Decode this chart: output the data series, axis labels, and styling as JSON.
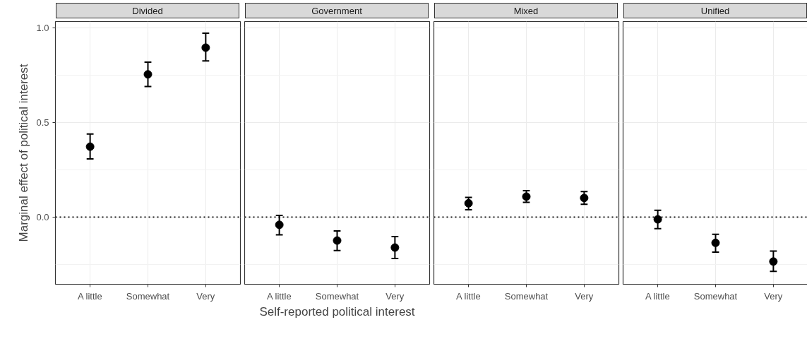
{
  "chart_data": [
    {
      "type": "scatter",
      "title": "Divided",
      "ylabel": "Marginal effect of political interest",
      "categories": [
        "A little",
        "Somewhat",
        "Very"
      ],
      "series": [
        {
          "color": "#000000",
          "values": [
            0.372,
            0.754,
            0.895
          ],
          "errors": [
            [
              0.307,
              0.439
            ],
            [
              0.69,
              0.818
            ],
            [
              0.825,
              0.971
            ]
          ]
        }
      ],
      "ylim": [
        -0.355,
        1.033
      ],
      "yticks": [
        {
          "value": 0.0,
          "label": "0.0"
        },
        {
          "value": 0.5,
          "label": "0.5"
        },
        {
          "value": 1.0,
          "label": "1.0"
        }
      ],
      "ref_lines": [
        {
          "axis": "y",
          "value": 0,
          "line_style": "dotted",
          "color": "#000000"
        }
      ],
      "grid": true,
      "marker": "circle"
    },
    {
      "type": "scatter",
      "title": "Government",
      "xlabel": "Self-reported political interest",
      "categories": [
        "A little",
        "Somewhat",
        "Very"
      ],
      "series": [
        {
          "color": "#000000",
          "values": [
            -0.041,
            -0.124,
            -0.161
          ],
          "errors": [
            [
              -0.094,
              0.009
            ],
            [
              -0.177,
              -0.073
            ],
            [
              -0.219,
              -0.103
            ]
          ]
        }
      ],
      "ylim": [
        -0.355,
        1.033
      ],
      "yticks": [
        0,
        0.5,
        1
      ],
      "tick_labels": "x",
      "ref_lines": [
        {
          "axis": "y",
          "value": 0,
          "line_style": "dotted",
          "color": "#000000"
        }
      ],
      "grid": true,
      "marker": "circle"
    },
    {
      "type": "scatter",
      "title": "Mixed",
      "categories": [
        "A little",
        "Somewhat",
        "Very"
      ],
      "series": [
        {
          "color": "#000000",
          "values": [
            0.073,
            0.108,
            0.101
          ],
          "errors": [
            [
              0.039,
              0.104
            ],
            [
              0.078,
              0.139
            ],
            [
              0.068,
              0.135
            ]
          ]
        }
      ],
      "ylim": [
        -0.355,
        1.033
      ],
      "yticks": [
        0,
        0.5,
        1
      ],
      "tick_labels": "x",
      "ref_lines": [
        {
          "axis": "y",
          "value": 0,
          "line_style": "dotted",
          "color": "#000000"
        }
      ],
      "grid": true,
      "marker": "circle"
    },
    {
      "type": "scatter",
      "title": "Unified",
      "categories": [
        "A little",
        "Somewhat",
        "Very"
      ],
      "series": [
        {
          "color": "#000000",
          "values": [
            -0.012,
            -0.136,
            -0.235
          ],
          "errors": [
            [
              -0.061,
              0.036
            ],
            [
              -0.185,
              -0.091
            ],
            [
              -0.287,
              -0.18
            ]
          ]
        }
      ],
      "ylim": [
        -0.355,
        1.033
      ],
      "yticks": [
        0,
        0.5,
        1
      ],
      "tick_labels": "x",
      "ref_lines": [
        {
          "axis": "y",
          "value": 0,
          "line_style": "dotted",
          "color": "#000000"
        }
      ],
      "grid": true,
      "marker": "circle"
    }
  ]
}
